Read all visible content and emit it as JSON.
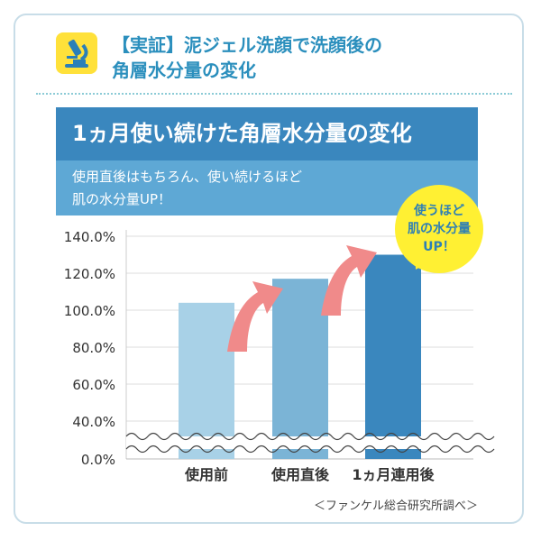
{
  "header": {
    "title_line1": "【実証】泥ジェル洗顔で洗顔後の",
    "title_line2": "角層水分量の変化"
  },
  "band": {
    "title": "1ヵ月使い続けた角層水分量の変化",
    "sub_line1": "使用直後はもちろん、使い続けるほど",
    "sub_line2": "肌の水分量UP！"
  },
  "bubble": {
    "line1": "使うほど",
    "line2": "肌の水分量",
    "line3": "UP！"
  },
  "chart_data": {
    "type": "bar",
    "categories": [
      "使用前",
      "使用直後",
      "1ヵ月連用後"
    ],
    "values": [
      104,
      117,
      130
    ],
    "yticks": [
      "140.0%",
      "120.0%",
      "100.0%",
      "80.0%",
      "60.0%",
      "40.0%",
      "0.0%"
    ],
    "ylim": [
      0,
      140
    ],
    "axis_break": "between 0% and 40%",
    "colors": [
      "#a8d1e7",
      "#7bb4d6",
      "#3a87be"
    ],
    "arrow_color": "#f08a8a",
    "grid": true
  },
  "source": "＜ファンケル総合研究所調べ＞"
}
